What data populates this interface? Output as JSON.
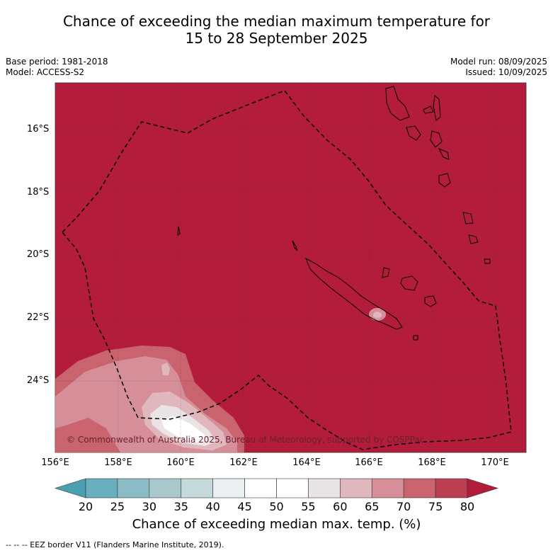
{
  "title_line1": "Chance of exceeding the median maximum temperature for",
  "title_line2": "15 to 28 September 2025",
  "base_period": "Base period: 1981-2018",
  "model": "Model: ACCESS-S2",
  "model_run": "Model run: 08/09/2025",
  "issued": "Issued: 10/09/2025",
  "copyright": "© Commonwealth of Australia 2025, Bureau of Meteorology, supported by COSPPac",
  "legend_text": "--  --  -- EEZ border V11 (Flanders Marine Institute, 2019).",
  "map": {
    "lon_range": [
      156,
      171
    ],
    "lat_range": [
      -26.3,
      -14.6
    ],
    "lat_ticks": [
      "16°S",
      "18°S",
      "20°S",
      "22°S",
      "24°S"
    ],
    "lon_ticks": [
      "156°E",
      "158°E",
      "160°E",
      "162°E",
      "164°E",
      "166°E",
      "168°E",
      "170°E"
    ],
    "background_category": "80+",
    "background_color": "#b31c3a"
  },
  "colorbar": {
    "label": "Chance of exceeding median max. temp. (%)",
    "ticks": [
      "20",
      "25",
      "30",
      "35",
      "40",
      "45",
      "50",
      "55",
      "60",
      "65",
      "70",
      "75",
      "80"
    ],
    "colors": [
      "#4aa0b0",
      "#6aafbd",
      "#8bbcc6",
      "#a9c8cc",
      "#c6d9db",
      "#eaf0f1",
      "#ffffff",
      "#ffffff",
      "#ebe4e5",
      "#e0b7bd",
      "#d68f99",
      "#c9646f",
      "#bc3f51",
      "#b31c3a"
    ]
  }
}
